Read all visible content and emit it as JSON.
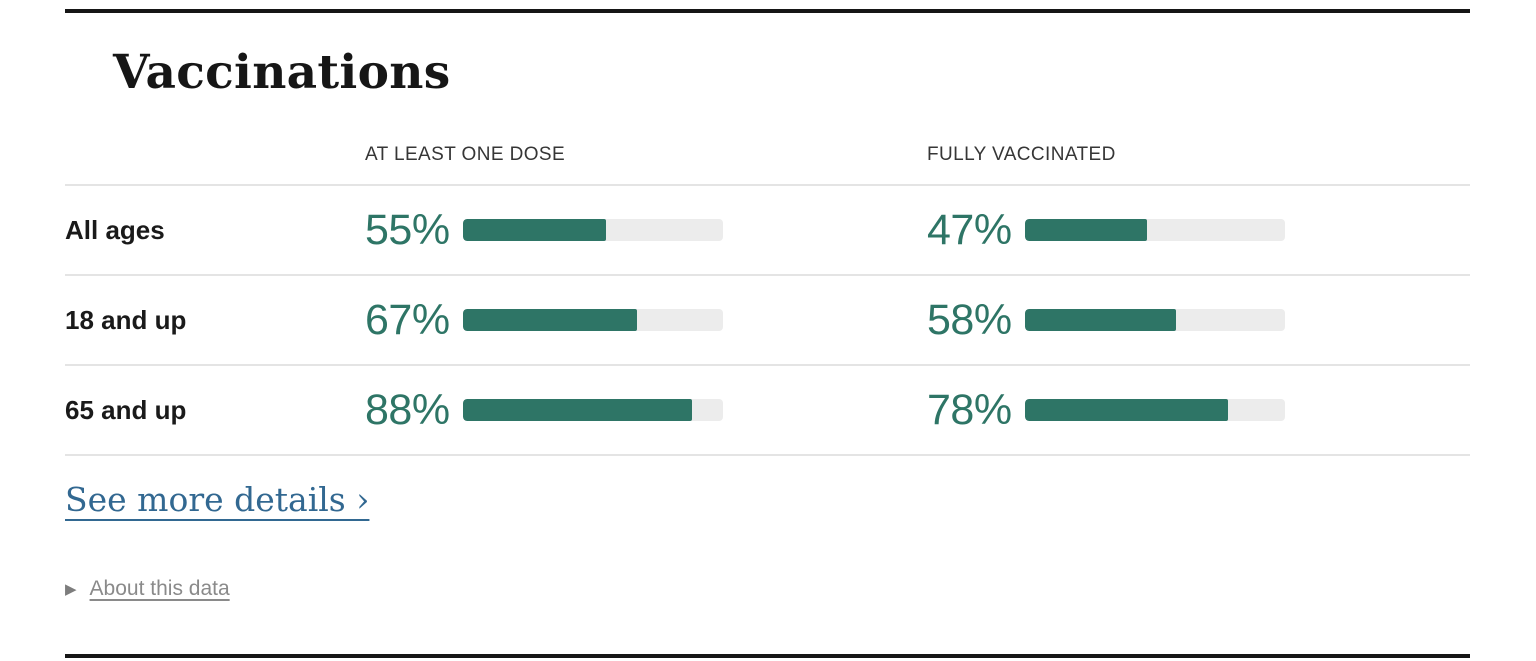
{
  "page": {
    "title": "Vaccinations"
  },
  "table": {
    "columns": [
      "AT LEAST ONE DOSE",
      "FULLY VACCINATED"
    ],
    "rows": [
      {
        "label": "All ages",
        "values": [
          {
            "display": "55%",
            "pct": 55
          },
          {
            "display": "47%",
            "pct": 47
          }
        ]
      },
      {
        "label": "18 and up",
        "values": [
          {
            "display": "67%",
            "pct": 67
          },
          {
            "display": "58%",
            "pct": 58
          }
        ]
      },
      {
        "label": "65 and up",
        "values": [
          {
            "display": "88%",
            "pct": 88
          },
          {
            "display": "78%",
            "pct": 78
          }
        ]
      }
    ]
  },
  "links": {
    "see_more_details": "See more details ›",
    "about_this_data": "About this data"
  },
  "icons": {
    "about_toggle_glyph": "▶"
  },
  "colors": {
    "bar_fill": "#2e7566",
    "bar_track": "#ececec",
    "link_blue": "#326891",
    "muted_gray": "#8a8a8a",
    "frame_black": "#161616",
    "divider": "#e4e4e4"
  },
  "chart_data": {
    "type": "bar",
    "title": "Vaccinations",
    "categories": [
      "All ages",
      "18 and up",
      "65 and up"
    ],
    "series": [
      {
        "name": "AT LEAST ONE DOSE",
        "values": [
          55,
          67,
          88
        ]
      },
      {
        "name": "FULLY VACCINATED",
        "values": [
          47,
          58,
          78
        ]
      }
    ],
    "unit": "%",
    "value_range": [
      0,
      100
    ],
    "legend_position": "column headers",
    "grid": false
  }
}
